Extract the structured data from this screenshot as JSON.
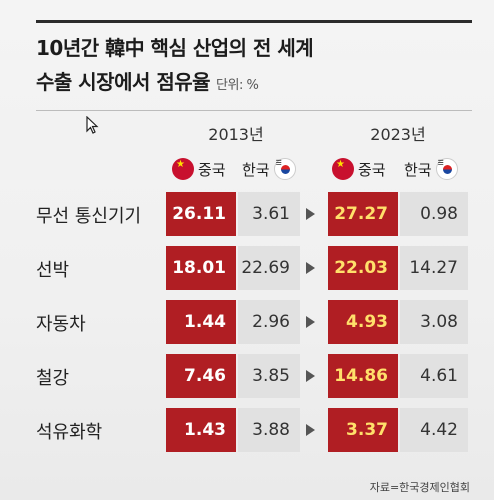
{
  "title": {
    "line1": "10년간 韓中 핵심 산업의 전 세계",
    "line2": "수출 시장에서 점유율",
    "unit": "단위: %"
  },
  "years": [
    "2013년",
    "2023년"
  ],
  "legend": {
    "china": "중국",
    "korea": "한국"
  },
  "source": "자료=한국경제인협회",
  "colors": {
    "china_cell": "#b01e23",
    "korea_cell": "#e1e1e1",
    "highlight_text": "#ffe06b"
  },
  "chart_data": {
    "type": "table",
    "title": "10년간 韓中 핵심 산업의 전 세계 수출 시장에서 점유율",
    "unit": "%",
    "categories": [
      "무선 통신기기",
      "선박",
      "자동차",
      "철강",
      "석유화학"
    ],
    "series": [
      {
        "name": "중국 2013년",
        "values": [
          "26.11",
          "18.01",
          "1.44",
          "7.46",
          "1.43"
        ]
      },
      {
        "name": "한국 2013년",
        "values": [
          "3.61",
          "22.69",
          "2.96",
          "3.85",
          "3.88"
        ]
      },
      {
        "name": "중국 2023년",
        "values": [
          "27.27",
          "22.03",
          "4.93",
          "14.86",
          "3.37"
        ]
      },
      {
        "name": "한국 2023년",
        "values": [
          "0.98",
          "14.27",
          "3.08",
          "4.61",
          "4.42"
        ]
      }
    ]
  }
}
